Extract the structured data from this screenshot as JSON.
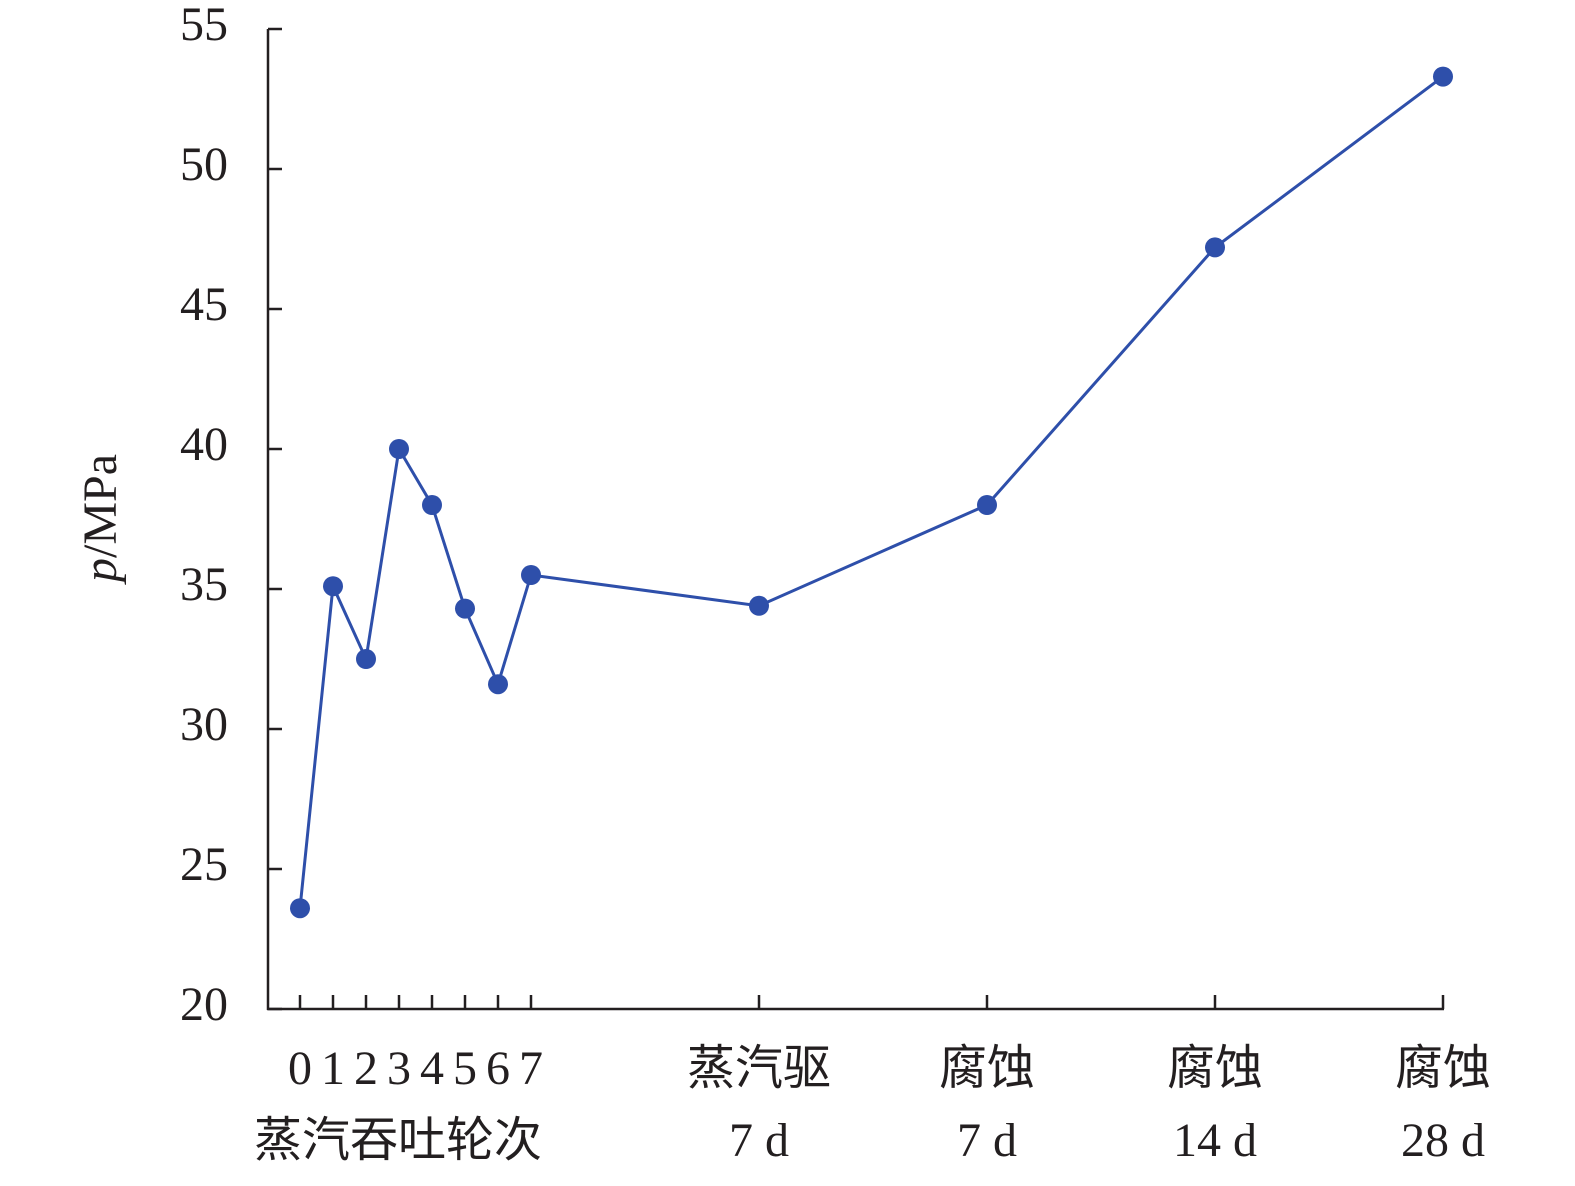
{
  "chart_data": {
    "type": "line",
    "ylabel": "p/MPa",
    "category_group_label": "蒸汽吞吐轮次",
    "categories": [
      "0",
      "1",
      "2",
      "3",
      "4",
      "5",
      "6",
      "7",
      "蒸汽驱\n7 d",
      "腐蚀\n7 d",
      "腐蚀\n14 d",
      "腐蚀\n28 d"
    ],
    "series": [
      {
        "name": "p",
        "color": "#2e4faa",
        "values": [
          23.6,
          35.1,
          32.5,
          40,
          38,
          34.3,
          31.6,
          35.5,
          34.4,
          38,
          47.2,
          53.3
        ]
      }
    ],
    "ylim": [
      20,
      55
    ],
    "yticks": [
      20,
      25,
      30,
      35,
      40,
      45,
      50,
      55
    ],
    "grid": false
  }
}
